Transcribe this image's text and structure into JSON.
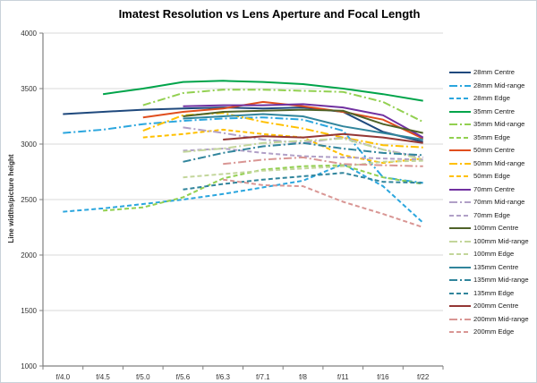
{
  "figure": {
    "title": "Imatest Resolution vs Lens Aperture and Focal Length"
  },
  "chart_data": {
    "type": "line",
    "title": "Imatest Resolution vs Lens Aperture and Focal Length",
    "xlabel": "",
    "ylabel": "Line widths/picture height",
    "ylim": [
      1000,
      4000
    ],
    "ytick_step": 500,
    "grid": true,
    "legend_position": "right",
    "categories": [
      "f/4.0",
      "f/4.5",
      "f/5.0",
      "f/5.6",
      "f/6.3",
      "f/7.1",
      "f/8",
      "f/11",
      "f/16",
      "f/22"
    ],
    "series": [
      {
        "name": "28mm Centre",
        "color": "#1F497D",
        "style": "solid",
        "values": [
          3270,
          3290,
          3310,
          3320,
          3330,
          3320,
          3330,
          3290,
          3110,
          3020
        ]
      },
      {
        "name": "28mm Mid-range",
        "color": "#2BA6DE",
        "style": "dashdot",
        "values": [
          3100,
          3130,
          3180,
          3210,
          3230,
          3240,
          3220,
          3120,
          2700,
          2650
        ]
      },
      {
        "name": "28mm Edge",
        "color": "#2BA6DE",
        "style": "dash",
        "values": [
          2390,
          2420,
          2460,
          2500,
          2550,
          2610,
          2670,
          2820,
          2620,
          2290
        ]
      },
      {
        "name": "35mm Centre",
        "color": "#00A44A",
        "style": "solid",
        "values": [
          null,
          3450,
          3500,
          3560,
          3570,
          3560,
          3540,
          3500,
          3450,
          3390
        ]
      },
      {
        "name": "35mm Mid-range",
        "color": "#92D050",
        "style": "dashdot",
        "values": [
          null,
          null,
          3350,
          3460,
          3490,
          3490,
          3480,
          3470,
          3380,
          3200
        ]
      },
      {
        "name": "35mm Edge",
        "color": "#92D050",
        "style": "dash",
        "values": [
          null,
          2400,
          2430,
          2520,
          2690,
          2770,
          2800,
          2810,
          2700,
          2640
        ]
      },
      {
        "name": "50mm Centre",
        "color": "#E04E1E",
        "style": "solid",
        "values": [
          null,
          null,
          3240,
          3290,
          3320,
          3380,
          3340,
          3290,
          3220,
          3050
        ]
      },
      {
        "name": "50mm Mid-range",
        "color": "#FFC000",
        "style": "dashdot",
        "values": [
          null,
          null,
          3120,
          3260,
          3280,
          3200,
          3140,
          3060,
          2990,
          2970
        ]
      },
      {
        "name": "50mm Edge",
        "color": "#FFC000",
        "style": "dash",
        "values": [
          null,
          null,
          3060,
          3090,
          3130,
          3090,
          3060,
          2900,
          2830,
          2870
        ]
      },
      {
        "name": "70mm Centre",
        "color": "#7030A0",
        "style": "solid",
        "values": [
          null,
          null,
          null,
          3340,
          3350,
          3350,
          3360,
          3330,
          3260,
          3060
        ]
      },
      {
        "name": "70mm Mid-range",
        "color": "#B1A0C7",
        "style": "dashdot",
        "values": [
          null,
          null,
          null,
          3150,
          3100,
          3040,
          3010,
          3060,
          2950,
          2880
        ]
      },
      {
        "name": "70mm Edge",
        "color": "#B1A0C7",
        "style": "dash",
        "values": [
          null,
          null,
          null,
          2940,
          2960,
          2920,
          2890,
          2880,
          2870,
          2860
        ]
      },
      {
        "name": "100mm Centre",
        "color": "#4F6228",
        "style": "solid",
        "values": [
          null,
          null,
          null,
          3250,
          3290,
          3300,
          3310,
          3300,
          3180,
          3100
        ]
      },
      {
        "name": "100mm Mid-range",
        "color": "#C3D69B",
        "style": "dashdot",
        "values": [
          null,
          null,
          null,
          2930,
          2960,
          3010,
          3030,
          3050,
          2950,
          2860
        ]
      },
      {
        "name": "100mm Edge",
        "color": "#C3D69B",
        "style": "dash",
        "values": [
          null,
          null,
          null,
          2700,
          2730,
          2760,
          2780,
          2800,
          2840,
          2850
        ]
      },
      {
        "name": "135mm Centre",
        "color": "#31859C",
        "style": "solid",
        "values": [
          null,
          null,
          null,
          3230,
          3250,
          3270,
          3250,
          3160,
          3100,
          3040
        ]
      },
      {
        "name": "135mm Mid-range",
        "color": "#31859C",
        "style": "dashdot",
        "values": [
          null,
          null,
          null,
          2840,
          2920,
          2980,
          3010,
          2960,
          2920,
          2900
        ]
      },
      {
        "name": "135mm Edge",
        "color": "#31859C",
        "style": "dash",
        "values": [
          null,
          null,
          null,
          2590,
          2640,
          2680,
          2710,
          2740,
          2660,
          2650
        ]
      },
      {
        "name": "200mm Centre",
        "color": "#943634",
        "style": "solid",
        "values": [
          null,
          null,
          null,
          null,
          3040,
          3070,
          3060,
          3090,
          3060,
          3010
        ]
      },
      {
        "name": "200mm Mid-range",
        "color": "#D99694",
        "style": "dashdot",
        "values": [
          null,
          null,
          null,
          null,
          2820,
          2860,
          2880,
          2820,
          2810,
          2800
        ]
      },
      {
        "name": "200mm Edge",
        "color": "#D99694",
        "style": "dash",
        "values": [
          null,
          null,
          null,
          null,
          2680,
          2630,
          2620,
          2480,
          2370,
          2250
        ]
      }
    ]
  }
}
